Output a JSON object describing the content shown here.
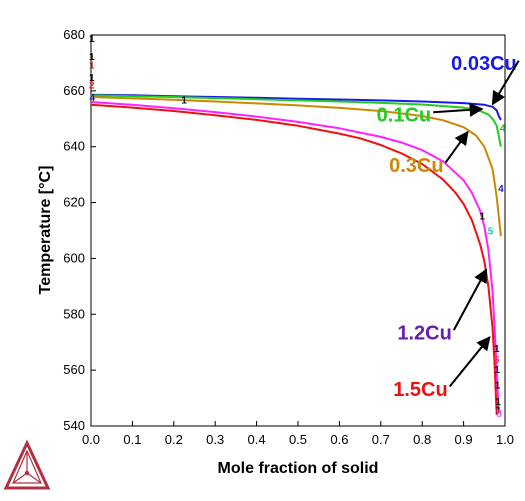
{
  "chart_data": {
    "type": "line",
    "xlabel": "Mole fraction of solid",
    "ylabel": "Temperature [°C]",
    "xlim": [
      0,
      1
    ],
    "ylim": [
      540,
      680
    ],
    "x_ticks": [
      "0.0",
      "0.1",
      "0.2",
      "0.3",
      "0.4",
      "0.5",
      "0.6",
      "0.7",
      "0.8",
      "0.9",
      "1.0"
    ],
    "y_ticks": [
      "540",
      "560",
      "580",
      "600",
      "620",
      "640",
      "660",
      "680"
    ],
    "grid": false,
    "legend": "none",
    "series": [
      {
        "name": "0.03Cu",
        "color": "#1a1ae6",
        "x": [
          0,
          0.1,
          0.2,
          0.3,
          0.4,
          0.5,
          0.6,
          0.7,
          0.8,
          0.9,
          0.95,
          0.97,
          0.98,
          0.985,
          0.99
        ],
        "y": [
          658.6,
          658.4,
          658.1,
          657.8,
          657.5,
          657.2,
          656.9,
          656.6,
          656.2,
          655.6,
          655,
          654.3,
          653,
          651,
          649.6
        ]
      },
      {
        "name": "0.1Cu",
        "color": "#22cc22",
        "x": [
          0,
          0.1,
          0.2,
          0.3,
          0.4,
          0.5,
          0.6,
          0.7,
          0.8,
          0.9,
          0.94,
          0.96,
          0.97,
          0.98,
          0.99
        ],
        "y": [
          658.4,
          658.1,
          657.8,
          657.4,
          657,
          656.6,
          656.2,
          655.7,
          655.1,
          654,
          652.8,
          651.5,
          650,
          647.5,
          640
        ]
      },
      {
        "name": "0.3Cu",
        "color": "#cc8800",
        "x": [
          0,
          0.1,
          0.2,
          0.3,
          0.4,
          0.5,
          0.6,
          0.7,
          0.8,
          0.85,
          0.9,
          0.93,
          0.95,
          0.97,
          0.98,
          0.99
        ],
        "y": [
          657.8,
          657.3,
          656.8,
          656.2,
          655.5,
          654.8,
          653.9,
          652.8,
          651,
          649.5,
          647,
          644,
          640,
          632,
          622,
          608
        ]
      },
      {
        "name": "1.2Cu",
        "color": "#ff22ff",
        "x": [
          0,
          0.1,
          0.2,
          0.3,
          0.4,
          0.5,
          0.6,
          0.7,
          0.75,
          0.8,
          0.85,
          0.9,
          0.92,
          0.94,
          0.95,
          0.96,
          0.97,
          0.975,
          0.98,
          0.985
        ],
        "y": [
          656,
          655,
          653.8,
          652.4,
          650.8,
          648.9,
          646.6,
          643.5,
          641.5,
          638.8,
          634.8,
          628,
          623.5,
          617,
          611.5,
          603,
          588,
          575,
          560,
          545
        ]
      },
      {
        "name": "1.5Cu",
        "color": "#ee1111",
        "x": [
          0,
          0.1,
          0.2,
          0.3,
          0.4,
          0.5,
          0.6,
          0.65,
          0.7,
          0.75,
          0.8,
          0.85,
          0.88,
          0.9,
          0.92,
          0.94,
          0.95,
          0.96,
          0.97,
          0.975,
          0.98
        ],
        "y": [
          655,
          654,
          652.8,
          651.3,
          649.6,
          647.5,
          644.7,
          643,
          640.6,
          637.6,
          633.8,
          628.3,
          623.6,
          619.5,
          613.7,
          605,
          599,
          590,
          575,
          562,
          544
        ]
      }
    ],
    "annotations": [
      {
        "text": "0.03Cu",
        "color": "#1a1ae6",
        "x": 0.87,
        "y": 667.5,
        "arrow_to": [
          0.97,
          655.2
        ]
      },
      {
        "text": "0.1Cu",
        "color": "#22cc22",
        "x": 0.69,
        "y": 649.0,
        "arrow_to": [
          0.945,
          653.5
        ]
      },
      {
        "text": "0.3Cu",
        "color": "#cc8800",
        "x": 0.72,
        "y": 631.0,
        "arrow_to": [
          0.91,
          645.3
        ]
      },
      {
        "text": "1.2Cu",
        "color": "#6a1fa8",
        "x": 0.74,
        "y": 571.0,
        "arrow_to": [
          0.955,
          596.0
        ]
      },
      {
        "text": "1.5Cu",
        "color": "#ee1111",
        "x": 0.73,
        "y": 550.8,
        "arrow_to": [
          0.963,
          571.8
        ]
      }
    ],
    "curve_markers": [
      {
        "text": "1",
        "color": "#111111",
        "x": 0.002,
        "y": 677.5
      },
      {
        "text": "1",
        "color": "#111111",
        "x": 0.002,
        "y": 671.0
      },
      {
        "text": "1",
        "color": "#cc2222",
        "x": 0.002,
        "y": 668.0
      },
      {
        "text": "1",
        "color": "#111111",
        "x": 0.002,
        "y": 663.5
      },
      {
        "text": "2",
        "color": "#cc2222",
        "x": 0.002,
        "y": 660.8
      },
      {
        "text": "4",
        "color": "#2222cc",
        "x": 0.003,
        "y": 656.3
      },
      {
        "text": "1",
        "color": "#111111",
        "x": 0.225,
        "y": 655.5
      },
      {
        "text": "4",
        "color": "#22aa22",
        "x": 0.995,
        "y": 645.5
      },
      {
        "text": "4",
        "color": "#2222cc",
        "x": 0.99,
        "y": 623.8
      },
      {
        "text": "1",
        "color": "#111111",
        "x": 0.945,
        "y": 614.0
      },
      {
        "text": "5",
        "color": "#22bbdd",
        "x": 0.965,
        "y": 608.5
      },
      {
        "text": "1",
        "color": "#111111",
        "x": 0.98,
        "y": 566.5
      },
      {
        "text": "5",
        "color": "#ee4444",
        "x": 0.98,
        "y": 562.5
      },
      {
        "text": "1",
        "color": "#111111",
        "x": 0.981,
        "y": 559.0
      },
      {
        "text": "1",
        "color": "#111111",
        "x": 0.982,
        "y": 553.5
      },
      {
        "text": "1",
        "color": "#111111",
        "x": 0.983,
        "y": 547.5
      },
      {
        "text": "1",
        "color": "#111111",
        "x": 0.984,
        "y": 544.5
      },
      {
        "text": "8",
        "color": "#ff44ff",
        "x": 0.986,
        "y": 543.3
      }
    ]
  },
  "logo": {
    "name": "thermo-calc-logo",
    "color": "#b03040"
  }
}
